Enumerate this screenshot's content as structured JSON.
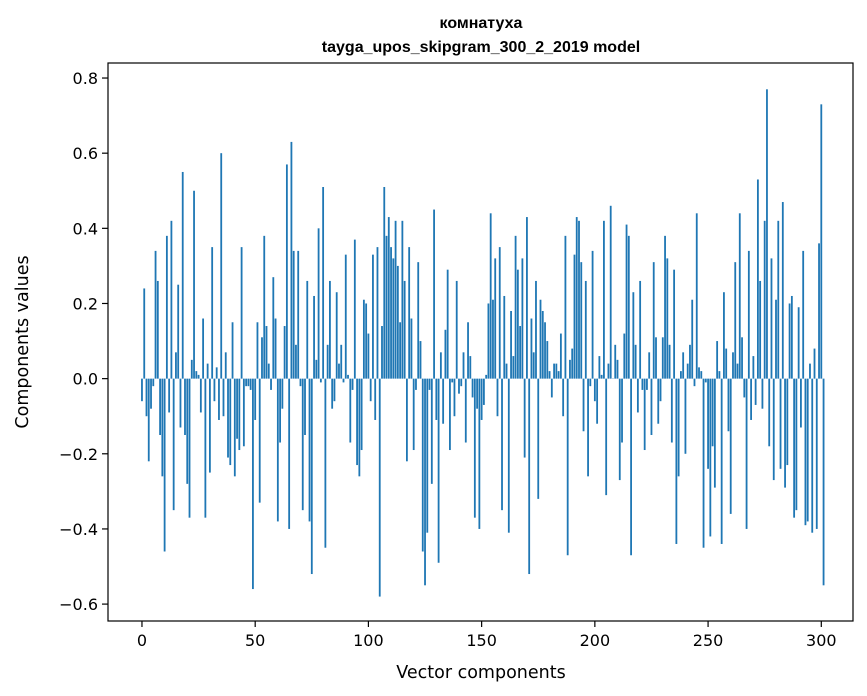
{
  "chart_data": {
    "type": "bar",
    "title_line1": "комнатуха",
    "title_line2": "tayga_upos_skipgram_300_2_2019 model",
    "xlabel": "Vector components",
    "ylabel": "Components values",
    "xlim": [
      -15,
      314
    ],
    "ylim": [
      -0.645,
      0.84
    ],
    "x_ticks": [
      0,
      50,
      100,
      150,
      200,
      250,
      300
    ],
    "x_tick_labels": [
      "0",
      "50",
      "100",
      "150",
      "200",
      "250",
      "300"
    ],
    "y_ticks": [
      -0.6,
      -0.4,
      -0.2,
      0.0,
      0.2,
      0.4,
      0.6,
      0.8
    ],
    "y_tick_labels": [
      "−0.6",
      "−0.4",
      "−0.2",
      "0.0",
      "0.2",
      "0.4",
      "0.6",
      "0.8"
    ],
    "bar_color": "#1f77b4",
    "grid": false,
    "values": [
      -0.06,
      0.24,
      -0.1,
      -0.22,
      -0.08,
      -0.02,
      0.34,
      0.26,
      -0.15,
      -0.26,
      -0.46,
      0.38,
      -0.09,
      0.42,
      -0.35,
      0.07,
      0.25,
      -0.13,
      0.55,
      -0.15,
      -0.28,
      -0.37,
      0.05,
      0.5,
      0.02,
      0.01,
      -0.09,
      0.16,
      -0.37,
      0.04,
      -0.25,
      0.35,
      -0.06,
      0.03,
      -0.11,
      0.6,
      -0.1,
      0.07,
      -0.21,
      -0.23,
      0.15,
      -0.26,
      -0.16,
      -0.19,
      0.35,
      -0.18,
      -0.02,
      -0.02,
      -0.03,
      -0.56,
      -0.11,
      0.15,
      -0.33,
      0.11,
      0.38,
      0.14,
      0.04,
      -0.03,
      0.27,
      0.16,
      -0.38,
      -0.17,
      -0.08,
      0.14,
      0.57,
      -0.4,
      0.63,
      0.34,
      0.09,
      0.34,
      -0.02,
      -0.35,
      -0.15,
      0.26,
      -0.38,
      -0.52,
      0.22,
      0.05,
      0.4,
      -0.01,
      0.51,
      -0.45,
      0.09,
      0.26,
      -0.08,
      -0.06,
      0.23,
      0.04,
      0.09,
      -0.01,
      0.33,
      0.01,
      -0.17,
      -0.03,
      0.37,
      -0.23,
      -0.26,
      -0.19,
      0.21,
      0.2,
      0.12,
      -0.06,
      0.33,
      -0.11,
      0.35,
      -0.58,
      0.14,
      0.51,
      0.38,
      0.43,
      0.35,
      0.32,
      0.42,
      0.3,
      0.15,
      0.42,
      0.26,
      -0.22,
      0.35,
      0.16,
      -0.19,
      -0.03,
      0.31,
      0.1,
      -0.46,
      -0.55,
      -0.41,
      -0.03,
      -0.28,
      0.45,
      -0.11,
      -0.49,
      0.07,
      -0.12,
      0.13,
      0.29,
      -0.19,
      -0.01,
      -0.1,
      0.26,
      -0.04,
      -0.02,
      0.07,
      -0.17,
      0.15,
      0.06,
      -0.05,
      -0.37,
      -0.08,
      -0.4,
      -0.11,
      -0.07,
      0.01,
      0.2,
      0.44,
      0.21,
      0.32,
      -0.1,
      0.35,
      -0.35,
      0.22,
      0.04,
      -0.41,
      0.18,
      0.06,
      0.38,
      0.29,
      0.14,
      0.32,
      -0.21,
      0.43,
      -0.52,
      0.16,
      0.07,
      0.26,
      -0.32,
      0.21,
      0.18,
      0.15,
      0.1,
      0.02,
      -0.05,
      0.04,
      0.04,
      0.02,
      0.12,
      -0.1,
      0.38,
      -0.47,
      0.05,
      0.08,
      0.33,
      0.43,
      0.42,
      0.31,
      -0.14,
      0.26,
      -0.26,
      -0.02,
      0.34,
      -0.06,
      -0.12,
      0.06,
      0.01,
      0.42,
      -0.31,
      0.04,
      0.46,
      0.0,
      0.09,
      0.05,
      -0.27,
      -0.17,
      0.12,
      0.41,
      0.38,
      -0.47,
      0.23,
      0.09,
      -0.09,
      0.26,
      -0.03,
      -0.19,
      -0.03,
      0.07,
      -0.15,
      0.31,
      0.11,
      -0.12,
      -0.06,
      0.11,
      0.38,
      0.32,
      0.09,
      -0.17,
      0.29,
      -0.44,
      -0.26,
      0.02,
      0.07,
      -0.2,
      0.04,
      0.09,
      0.21,
      -0.02,
      0.44,
      0.03,
      0.02,
      -0.45,
      -0.01,
      -0.24,
      -0.42,
      -0.18,
      -0.29,
      0.1,
      0.02,
      -0.44,
      0.23,
      0.08,
      -0.14,
      -0.36,
      0.07,
      0.31,
      0.04,
      0.44,
      0.11,
      -0.05,
      -0.4,
      0.34,
      -0.11,
      0.06,
      -0.07,
      0.53,
      0.26,
      -0.08,
      0.42,
      0.77,
      -0.18,
      0.32,
      -0.27,
      0.21,
      0.42,
      -0.24,
      0.47,
      -0.29,
      -0.23,
      0.2,
      0.22,
      -0.37,
      -0.35,
      0.19,
      -0.13,
      0.34,
      -0.39,
      -0.38,
      0.04,
      -0.41,
      0.08,
      -0.4,
      0.36,
      0.73,
      -0.55
    ]
  }
}
